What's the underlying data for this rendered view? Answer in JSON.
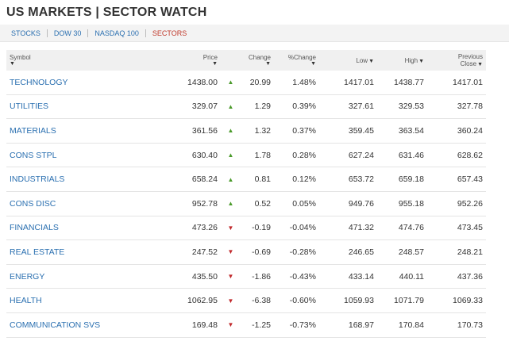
{
  "header": {
    "title": "US MARKETS | SECTOR WATCH"
  },
  "tabs": [
    "STOCKS",
    "DOW 30",
    "NASDAQ 100",
    "SECTORS"
  ],
  "table": {
    "columns": [
      "Symbol",
      "Price",
      "Change",
      "%Change",
      "Low",
      "High",
      "Previous Close"
    ],
    "rows": [
      [
        "TECHNOLOGY",
        "1438.00",
        "20.99",
        "1.48%",
        "1417.01",
        "1438.77",
        "1417.01"
      ],
      [
        "UTILITIES",
        "329.07",
        "1.29",
        "0.39%",
        "327.61",
        "329.53",
        "327.78"
      ],
      [
        "MATERIALS",
        "361.56",
        "1.32",
        "0.37%",
        "359.45",
        "363.54",
        "360.24"
      ],
      [
        "CONS STPL",
        "630.40",
        "1.78",
        "0.28%",
        "627.24",
        "631.46",
        "628.62"
      ],
      [
        "INDUSTRIALS",
        "658.24",
        "0.81",
        "0.12%",
        "653.72",
        "659.18",
        "657.43"
      ],
      [
        "CONS DISC",
        "952.78",
        "0.52",
        "0.05%",
        "949.76",
        "955.18",
        "952.26"
      ],
      [
        "FINANCIALS",
        "473.26",
        "-0.19",
        "-0.04%",
        "471.32",
        "474.76",
        "473.45"
      ],
      [
        "REAL ESTATE",
        "247.52",
        "-0.69",
        "-0.28%",
        "246.65",
        "248.57",
        "248.21"
      ],
      [
        "ENERGY",
        "435.50",
        "-1.86",
        "-0.43%",
        "433.14",
        "440.11",
        "437.36"
      ],
      [
        "HEALTH",
        "1062.95",
        "-6.38",
        "-0.60%",
        "1059.93",
        "1071.79",
        "1069.33"
      ],
      [
        "COMMUNICATION SVS",
        "169.48",
        "-1.25",
        "-0.73%",
        "168.97",
        "170.84",
        "170.73"
      ]
    ]
  }
}
